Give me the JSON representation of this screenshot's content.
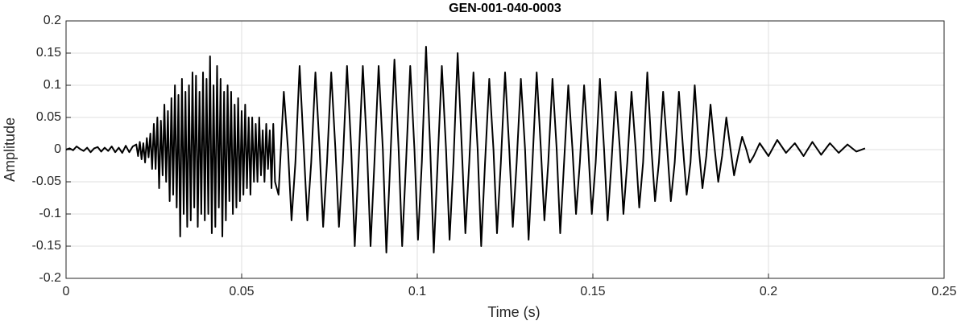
{
  "chart_data": {
    "type": "line",
    "title": "GEN-001-040-0003",
    "xlabel": "Time (s)",
    "ylabel": "Amplitude",
    "xlim": [
      0,
      0.25
    ],
    "ylim": [
      -0.2,
      0.2
    ],
    "xticks": [
      0,
      0.05,
      0.1,
      0.15,
      0.2,
      0.25
    ],
    "yticks": [
      -0.2,
      -0.15,
      -0.1,
      -0.05,
      0,
      0.05,
      0.1,
      0.15,
      0.2
    ],
    "grid": true,
    "series": [
      {
        "color": "#000000",
        "x": [
          0,
          0.001,
          0.002,
          0.003,
          0.004,
          0.005,
          0.006,
          0.007,
          0.008,
          0.009,
          0.01,
          0.011,
          0.012,
          0.013,
          0.014,
          0.015,
          0.016,
          0.017,
          0.018,
          0.019,
          0.02,
          0.0205,
          0.021,
          0.0215,
          0.022,
          0.0225,
          0.023,
          0.0235,
          0.024,
          0.0245,
          0.025,
          0.0255,
          0.026,
          0.0265,
          0.027,
          0.0275,
          0.028,
          0.0285,
          0.029,
          0.0295,
          0.03,
          0.0305,
          0.031,
          0.0315,
          0.032,
          0.0325,
          0.033,
          0.0335,
          0.034,
          0.0345,
          0.035,
          0.0355,
          0.036,
          0.0365,
          0.037,
          0.0375,
          0.038,
          0.0385,
          0.039,
          0.0395,
          0.04,
          0.0405,
          0.041,
          0.0415,
          0.042,
          0.0425,
          0.043,
          0.0435,
          0.044,
          0.0445,
          0.045,
          0.0455,
          0.046,
          0.0465,
          0.047,
          0.0475,
          0.048,
          0.0485,
          0.049,
          0.0495,
          0.05,
          0.0505,
          0.051,
          0.0515,
          0.052,
          0.0525,
          0.053,
          0.0535,
          0.054,
          0.0545,
          0.055,
          0.0555,
          0.056,
          0.0565,
          0.057,
          0.0575,
          0.058,
          0.0585,
          0.059,
          0.0595,
          0.0605,
          0.062,
          0.0632,
          0.0642,
          0.0653,
          0.0665,
          0.0677,
          0.0687,
          0.0698,
          0.071,
          0.0722,
          0.0732,
          0.0743,
          0.0755,
          0.0767,
          0.0777,
          0.0788,
          0.08,
          0.0812,
          0.0822,
          0.0833,
          0.0845,
          0.0857,
          0.0867,
          0.0878,
          0.089,
          0.0902,
          0.0912,
          0.0923,
          0.0935,
          0.0947,
          0.0957,
          0.0968,
          0.098,
          0.0992,
          0.1002,
          0.1013,
          0.1025,
          0.1037,
          0.1047,
          0.1058,
          0.107,
          0.1082,
          0.1092,
          0.1103,
          0.1115,
          0.1127,
          0.1137,
          0.1148,
          0.116,
          0.1172,
          0.1182,
          0.1193,
          0.1205,
          0.1217,
          0.1227,
          0.1238,
          0.125,
          0.1262,
          0.1272,
          0.1283,
          0.1295,
          0.1307,
          0.1317,
          0.1328,
          0.134,
          0.1352,
          0.1362,
          0.1373,
          0.1385,
          0.1397,
          0.1407,
          0.1418,
          0.143,
          0.1442,
          0.1452,
          0.1463,
          0.1475,
          0.1487,
          0.1497,
          0.1508,
          0.152,
          0.1532,
          0.1542,
          0.1553,
          0.1565,
          0.1577,
          0.1587,
          0.1598,
          0.161,
          0.1622,
          0.1632,
          0.1643,
          0.1655,
          0.1667,
          0.1677,
          0.1688,
          0.17,
          0.1712,
          0.1722,
          0.1733,
          0.1745,
          0.1757,
          0.1767,
          0.1778,
          0.179,
          0.1802,
          0.1812,
          0.1823,
          0.1835,
          0.1847,
          0.1857,
          0.1868,
          0.188,
          0.1892,
          0.1902,
          0.1913,
          0.1925,
          0.1937,
          0.1947,
          0.1958,
          0.1975,
          0.2,
          0.2025,
          0.205,
          0.2075,
          0.21,
          0.2125,
          0.215,
          0.2175,
          0.22,
          0.2225,
          0.225,
          0.2275
        ],
        "values": [
          0,
          0.002,
          -0.001,
          0.005,
          0.001,
          -0.002,
          0.003,
          -0.004,
          0.002,
          0.004,
          -0.003,
          0.003,
          -0.002,
          0.005,
          -0.004,
          0.003,
          -0.005,
          0.006,
          -0.004,
          0.005,
          0.008,
          -0.01,
          0.012,
          -0.015,
          0.01,
          -0.02,
          0.018,
          -0.012,
          0.025,
          -0.03,
          0.04,
          -0.03,
          0.05,
          -0.06,
          0.045,
          -0.04,
          0.07,
          -0.05,
          0.06,
          -0.08,
          0.08,
          -0.07,
          0.1,
          -0.09,
          0.085,
          -0.135,
          0.11,
          -0.1,
          0.09,
          -0.12,
          0.1,
          -0.11,
          0.12,
          -0.09,
          0.115,
          -0.12,
          0.09,
          -0.1,
          0.12,
          -0.11,
          0.11,
          -0.1,
          0.145,
          -0.13,
          0.1,
          -0.12,
          0.13,
          -0.09,
          0.11,
          -0.135,
          0.09,
          -0.11,
          0.1,
          -0.08,
          0.09,
          -0.1,
          0.07,
          -0.09,
          0.08,
          -0.08,
          0.06,
          -0.07,
          0.07,
          -0.06,
          0.05,
          -0.07,
          0.05,
          -0.05,
          0.04,
          -0.05,
          0.05,
          -0.04,
          0.03,
          -0.05,
          0.04,
          -0.03,
          0.03,
          -0.06,
          0.04,
          -0.05,
          -0.07,
          0.09,
          0,
          -0.11,
          -0.02,
          0.13,
          0,
          -0.11,
          -0.02,
          0.12,
          0,
          -0.12,
          -0.02,
          0.12,
          0,
          -0.12,
          -0.02,
          0.13,
          0,
          -0.15,
          -0.02,
          0.13,
          0,
          -0.15,
          -0.02,
          0.13,
          0,
          -0.16,
          -0.02,
          0.14,
          0,
          -0.15,
          -0.02,
          0.13,
          0,
          -0.14,
          -0.02,
          0.16,
          0,
          -0.16,
          -0.02,
          0.13,
          0,
          -0.14,
          -0.02,
          0.15,
          0,
          -0.13,
          -0.02,
          0.12,
          0,
          -0.15,
          -0.02,
          0.11,
          0,
          -0.13,
          -0.02,
          0.12,
          0,
          -0.12,
          -0.02,
          0.11,
          0,
          -0.14,
          -0.02,
          0.12,
          0,
          -0.11,
          -0.02,
          0.11,
          0,
          -0.13,
          -0.02,
          0.1,
          0,
          -0.1,
          -0.02,
          0.1,
          0,
          -0.1,
          -0.02,
          0.11,
          0,
          -0.11,
          -0.02,
          0.09,
          0,
          -0.1,
          -0.02,
          0.09,
          0,
          -0.09,
          -0.02,
          0.12,
          0,
          -0.08,
          -0.02,
          0.09,
          0,
          -0.08,
          -0.02,
          0.09,
          0,
          -0.07,
          -0.02,
          0.1,
          0,
          -0.06,
          -0.01,
          0.07,
          0,
          -0.05,
          -0.01,
          0.05,
          0,
          -0.04,
          -0.01,
          0.02,
          0,
          -0.02,
          -0.01,
          0.01,
          -0.01,
          0.015,
          -0.005,
          0.01,
          -0.01,
          0.012,
          -0.008,
          0.01,
          -0.005,
          0.008,
          -0.003,
          0.002
        ]
      }
    ]
  }
}
